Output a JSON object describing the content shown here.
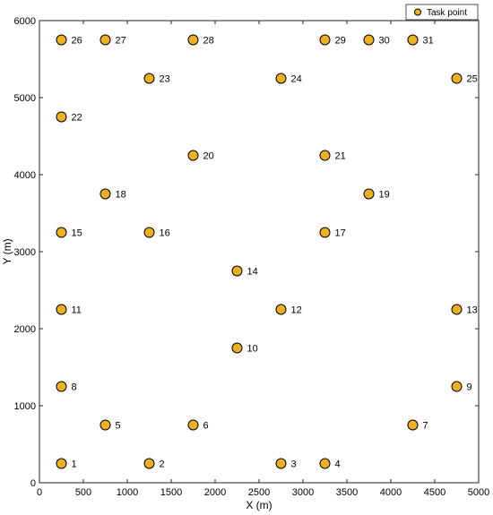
{
  "chart_data": {
    "type": "scatter",
    "xlabel": "X (m)",
    "ylabel": "Y (m)",
    "xlim": [
      0,
      5000
    ],
    "ylim": [
      0,
      6000
    ],
    "xticks": [
      0,
      500,
      1000,
      1500,
      2000,
      2500,
      3000,
      3500,
      4000,
      4500,
      5000
    ],
    "yticks": [
      0,
      1000,
      2000,
      3000,
      4000,
      5000,
      6000
    ],
    "grid": false,
    "legend": {
      "placement": "top-right",
      "entries": [
        "Task point"
      ]
    },
    "marker_color": "#EDB120",
    "marker_edge_color": "#000000",
    "series": [
      {
        "name": "Task point",
        "points": [
          {
            "label": "1",
            "x": 250,
            "y": 250
          },
          {
            "label": "2",
            "x": 1250,
            "y": 250
          },
          {
            "label": "3",
            "x": 2750,
            "y": 250
          },
          {
            "label": "4",
            "x": 3250,
            "y": 250
          },
          {
            "label": "5",
            "x": 750,
            "y": 750
          },
          {
            "label": "6",
            "x": 1750,
            "y": 750
          },
          {
            "label": "7",
            "x": 4250,
            "y": 750
          },
          {
            "label": "8",
            "x": 250,
            "y": 1250
          },
          {
            "label": "9",
            "x": 4750,
            "y": 1250
          },
          {
            "label": "10",
            "x": 2250,
            "y": 1750
          },
          {
            "label": "11",
            "x": 250,
            "y": 2250
          },
          {
            "label": "12",
            "x": 2750,
            "y": 2250
          },
          {
            "label": "13",
            "x": 4750,
            "y": 2250
          },
          {
            "label": "14",
            "x": 2250,
            "y": 2750
          },
          {
            "label": "15",
            "x": 250,
            "y": 3250
          },
          {
            "label": "16",
            "x": 1250,
            "y": 3250
          },
          {
            "label": "17",
            "x": 3250,
            "y": 3250
          },
          {
            "label": "18",
            "x": 750,
            "y": 3750
          },
          {
            "label": "19",
            "x": 3750,
            "y": 3750
          },
          {
            "label": "20",
            "x": 1750,
            "y": 4250
          },
          {
            "label": "21",
            "x": 3250,
            "y": 4250
          },
          {
            "label": "22",
            "x": 250,
            "y": 4750
          },
          {
            "label": "23",
            "x": 1250,
            "y": 5250
          },
          {
            "label": "24",
            "x": 2750,
            "y": 5250
          },
          {
            "label": "25",
            "x": 4750,
            "y": 5250
          },
          {
            "label": "26",
            "x": 250,
            "y": 5750
          },
          {
            "label": "27",
            "x": 750,
            "y": 5750
          },
          {
            "label": "28",
            "x": 1750,
            "y": 5750
          },
          {
            "label": "29",
            "x": 3250,
            "y": 5750
          },
          {
            "label": "30",
            "x": 3750,
            "y": 5750
          },
          {
            "label": "31",
            "x": 4250,
            "y": 5750
          }
        ]
      }
    ]
  }
}
